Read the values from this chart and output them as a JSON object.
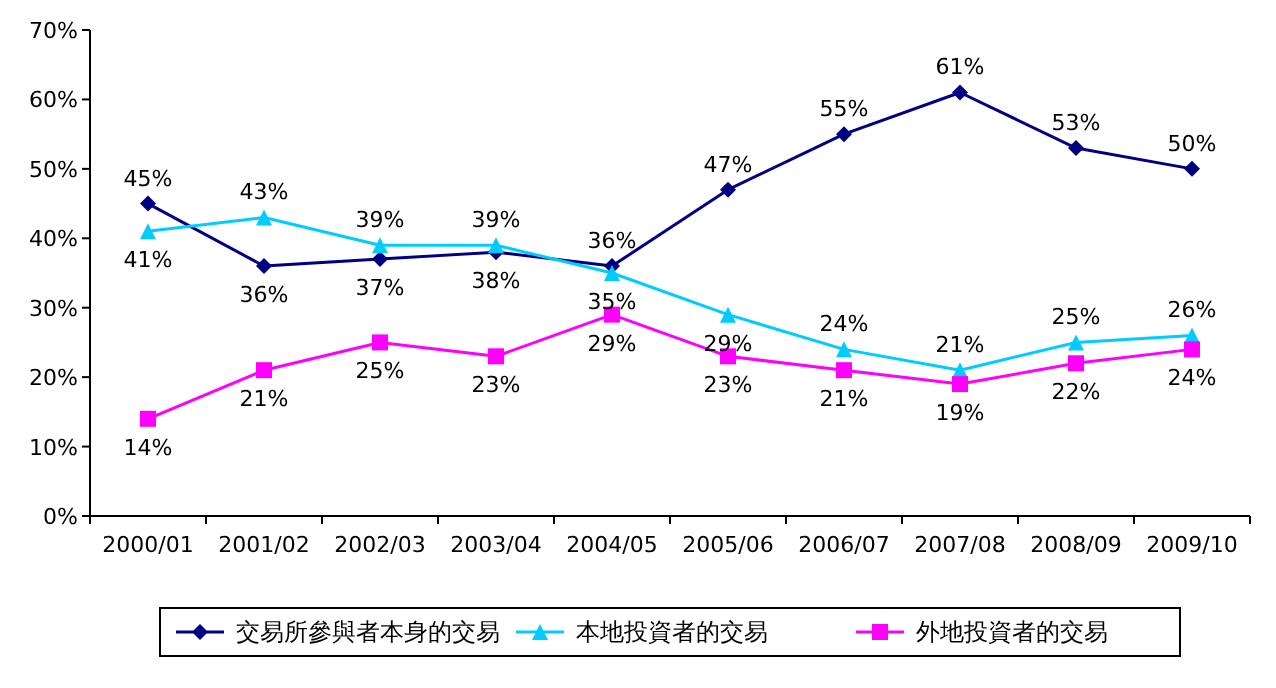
{
  "chart_data": {
    "type": "line",
    "categories": [
      "2000/01",
      "2001/02",
      "2002/03",
      "2003/04",
      "2004/05",
      "2005/06",
      "2006/07",
      "2007/08",
      "2008/09",
      "2009/10"
    ],
    "series": [
      {
        "name": "交易所參與者本身的交易",
        "color": "#000080",
        "marker": "diamond",
        "values": [
          45,
          36,
          37,
          38,
          36,
          47,
          55,
          61,
          53,
          50
        ],
        "value_labels": [
          "45%",
          "36%",
          "37%",
          "38%",
          "36%",
          "47%",
          "55%",
          "61%",
          "53%",
          "50%"
        ]
      },
      {
        "name": "本地投資者的交易",
        "color": "#00ccff",
        "marker": "triangle",
        "values": [
          41,
          43,
          39,
          39,
          35,
          29,
          24,
          21,
          25,
          26
        ],
        "value_labels": [
          "41%",
          "43%",
          "39%",
          "39%",
          "35%",
          "29%",
          "24%",
          "21%",
          "25%",
          "26%"
        ]
      },
      {
        "name": "外地投資者的交易",
        "color": "#ff00ff",
        "marker": "square",
        "values": [
          14,
          21,
          25,
          23,
          29,
          23,
          21,
          19,
          22,
          24
        ],
        "value_labels": [
          "14%",
          "21%",
          "25%",
          "23%",
          "29%",
          "23%",
          "21%",
          "19%",
          "22%",
          "24%"
        ]
      }
    ],
    "ylim": [
      0,
      70
    ],
    "yticks": [
      {
        "value": 0,
        "label": "0%"
      },
      {
        "value": 10,
        "label": "10%"
      },
      {
        "value": 20,
        "label": "20%"
      },
      {
        "value": 30,
        "label": "30%"
      },
      {
        "value": 40,
        "label": "40%"
      },
      {
        "value": 50,
        "label": "50%"
      },
      {
        "value": 60,
        "label": "60%"
      },
      {
        "value": 70,
        "label": "70%"
      }
    ],
    "legend": "bottom"
  }
}
